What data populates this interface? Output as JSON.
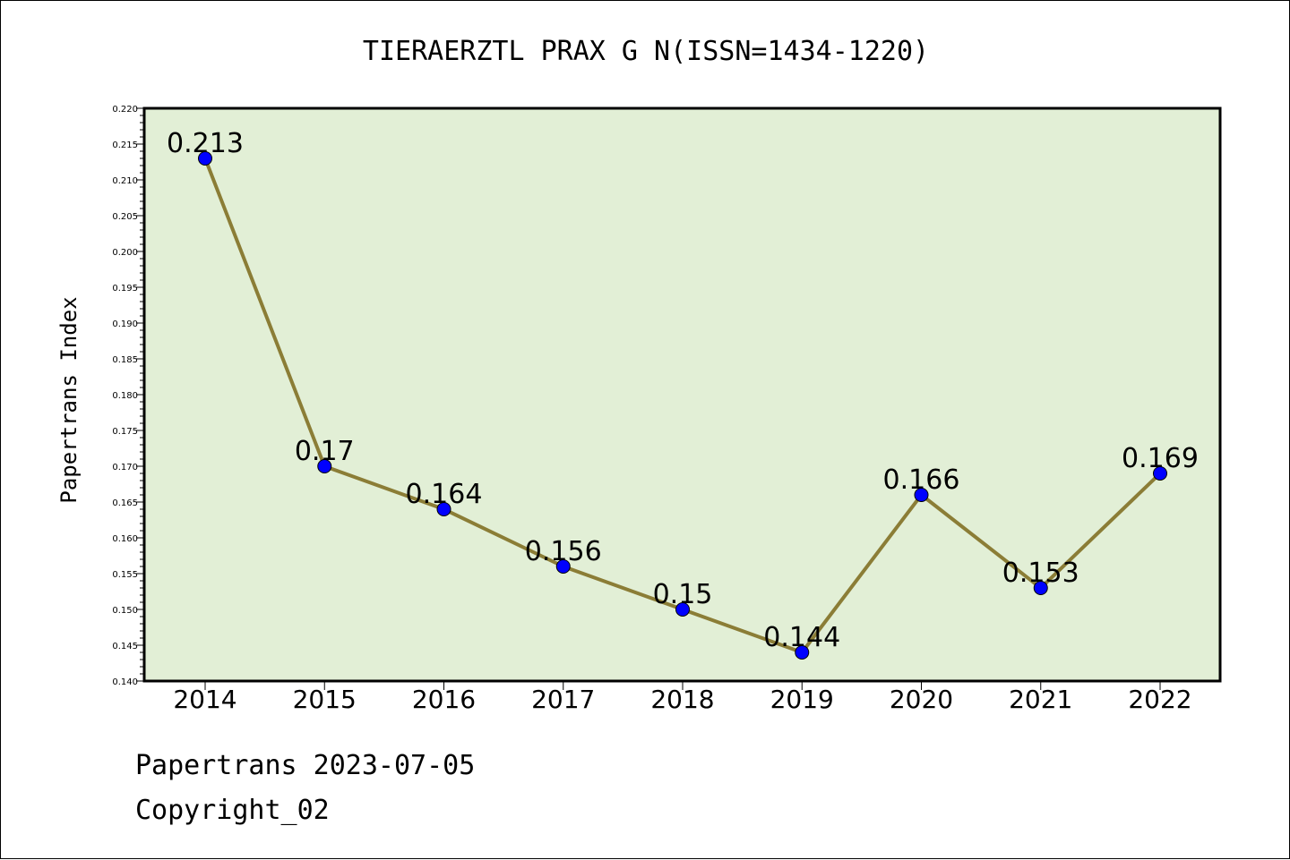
{
  "chart_data": {
    "type": "line",
    "title": "TIERAERZTL PRAX G N(ISSN=1434-1220)",
    "xlabel": "",
    "ylabel": "Papertrans Index",
    "categories": [
      "2014",
      "2015",
      "2016",
      "2017",
      "2018",
      "2019",
      "2020",
      "2021",
      "2022"
    ],
    "values": [
      0.213,
      0.17,
      0.164,
      0.156,
      0.15,
      0.144,
      0.166,
      0.153,
      0.169
    ],
    "data_labels": [
      "0.213",
      "0.17",
      "0.164",
      "0.156",
      "0.15",
      "0.144",
      "0.166",
      "0.153",
      "0.169"
    ],
    "ylim": [
      0.14,
      0.22
    ],
    "yticks": [
      "0.140",
      "0.145",
      "0.150",
      "0.155",
      "0.160",
      "0.165",
      "0.170",
      "0.175",
      "0.180",
      "0.185",
      "0.190",
      "0.195",
      "0.200",
      "0.205",
      "0.210",
      "0.215",
      "0.220"
    ],
    "grid": false,
    "colors": {
      "plot_background": "#e2efd6",
      "line": "#8b7d36",
      "marker": "#0000ff"
    }
  },
  "footer": {
    "line1": "Papertrans 2023-07-05",
    "line2": "Copyright_02"
  }
}
